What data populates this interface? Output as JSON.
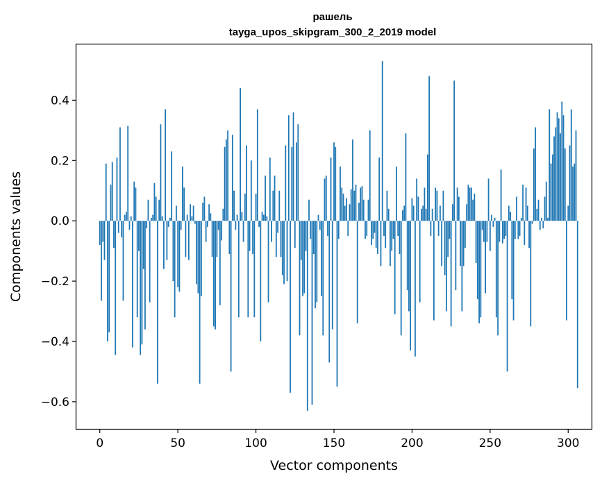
{
  "chart_data": {
    "type": "bar",
    "title_line1": "рашель",
    "title_line2": "tayga_upos_skipgram_300_2_2019 model",
    "xlabel": "Vector components",
    "ylabel": "Components values",
    "xlim": [
      -15,
      315
    ],
    "ylim": [
      -0.69,
      0.585
    ],
    "x_ticks": [
      0,
      50,
      100,
      150,
      200,
      250,
      300
    ],
    "x_tick_labels": [
      "0",
      "50",
      "100",
      "150",
      "200",
      "250",
      "300"
    ],
    "y_ticks": [
      -0.6,
      -0.4,
      -0.2,
      0.0,
      0.2,
      0.4
    ],
    "y_tick_labels": [
      "−0.6",
      "−0.4",
      "−0.2",
      "0.0",
      "0.2",
      "0.4"
    ],
    "bar_color": "#1f77b4",
    "values": [
      -0.08,
      -0.265,
      -0.07,
      -0.13,
      0.19,
      -0.4,
      -0.37,
      0.12,
      0.195,
      -0.09,
      -0.445,
      0.21,
      -0.04,
      0.31,
      -0.055,
      -0.265,
      0.02,
      0.03,
      0.315,
      -0.03,
      0.015,
      -0.42,
      0.13,
      0.11,
      -0.32,
      -0.1,
      -0.445,
      -0.41,
      -0.16,
      -0.36,
      -0.025,
      0.07,
      -0.27,
      0.01,
      0.02,
      0.125,
      0.08,
      -0.54,
      0.07,
      0.32,
      0.015,
      -0.16,
      0.37,
      -0.13,
      -0.02,
      0.01,
      0.23,
      -0.2,
      -0.32,
      0.05,
      -0.22,
      -0.235,
      -0.03,
      0.18,
      0.11,
      -0.12,
      0.02,
      -0.13,
      0.055,
      0.015,
      0.05,
      -0.01,
      -0.21,
      -0.24,
      -0.54,
      -0.25,
      0.06,
      0.08,
      -0.07,
      -0.02,
      0.055,
      0.025,
      -0.12,
      -0.35,
      -0.36,
      -0.12,
      -0.03,
      -0.28,
      -0.065,
      0.04,
      0.245,
      0.27,
      0.3,
      -0.11,
      -0.5,
      0.285,
      0.1,
      -0.03,
      0.02,
      -0.32,
      0.44,
      0.03,
      -0.07,
      0.09,
      0.25,
      -0.32,
      -0.1,
      0.2,
      -0.11,
      -0.32,
      0.09,
      0.37,
      -0.02,
      -0.4,
      0.03,
      0.02,
      0.15,
      0.015,
      -0.27,
      0.21,
      -0.07,
      0.1,
      0.15,
      -0.12,
      -0.04,
      0.1,
      -0.12,
      -0.18,
      -0.21,
      0.25,
      -0.2,
      0.35,
      -0.57,
      0.245,
      0.36,
      -0.09,
      0.26,
      0.32,
      -0.38,
      -0.13,
      -0.25,
      -0.24,
      -0.1,
      -0.63,
      0.07,
      -0.06,
      -0.61,
      -0.11,
      -0.29,
      -0.27,
      0.02,
      -0.03,
      -0.25,
      -0.38,
      0.14,
      0.15,
      -0.05,
      -0.47,
      0.21,
      -0.36,
      0.26,
      0.245,
      -0.55,
      -0.06,
      0.18,
      0.11,
      0.09,
      0.05,
      0.075,
      -0.05,
      0.055,
      0.105,
      0.27,
      0.1,
      0.12,
      -0.34,
      0.06,
      0.11,
      0.115,
      0.07,
      -0.06,
      -0.05,
      0.07,
      0.3,
      -0.08,
      -0.06,
      -0.04,
      -0.09,
      -0.11,
      0.21,
      -0.15,
      0.53,
      -0.05,
      -0.09,
      0.1,
      0.04,
      -0.15,
      -0.1,
      -0.06,
      -0.31,
      0.18,
      -0.05,
      -0.11,
      -0.38,
      0.035,
      0.05,
      0.29,
      -0.23,
      -0.3,
      -0.43,
      0.075,
      0.05,
      -0.45,
      0.14,
      0.08,
      -0.27,
      0.04,
      0.05,
      0.11,
      0.04,
      0.22,
      0.48,
      -0.05,
      0.04,
      -0.33,
      0.11,
      0.1,
      -0.05,
      0.05,
      -0.15,
      0.1,
      -0.18,
      -0.3,
      -0.12,
      -0.06,
      -0.35,
      0.055,
      0.465,
      -0.23,
      0.11,
      0.08,
      -0.15,
      -0.3,
      -0.15,
      -0.09,
      0.055,
      0.12,
      0.11,
      0.11,
      0.07,
      0.09,
      -0.14,
      -0.26,
      -0.34,
      -0.32,
      -0.03,
      -0.07,
      -0.24,
      -0.07,
      0.14,
      -0.1,
      0.02,
      -0.02,
      0.01,
      -0.32,
      -0.38,
      -0.07,
      0.17,
      -0.075,
      -0.06,
      -0.05,
      -0.5,
      0.05,
      0.03,
      -0.26,
      -0.33,
      -0.06,
      0.08,
      -0.06,
      -0.05,
      0.01,
      0.12,
      -0.08,
      0.11,
      0.05,
      -0.09,
      -0.35,
      -0.01,
      0.24,
      0.31,
      0.04,
      0.07,
      -0.03,
      0.01,
      -0.025,
      0.08,
      0.13,
      0.01,
      0.37,
      0.19,
      0.22,
      0.28,
      0.31,
      0.36,
      0.34,
      0.29,
      0.395,
      0.35,
      0.24,
      -0.33,
      0.05,
      0.25,
      0.37,
      0.18,
      0.19,
      0.3,
      -0.555
    ]
  }
}
